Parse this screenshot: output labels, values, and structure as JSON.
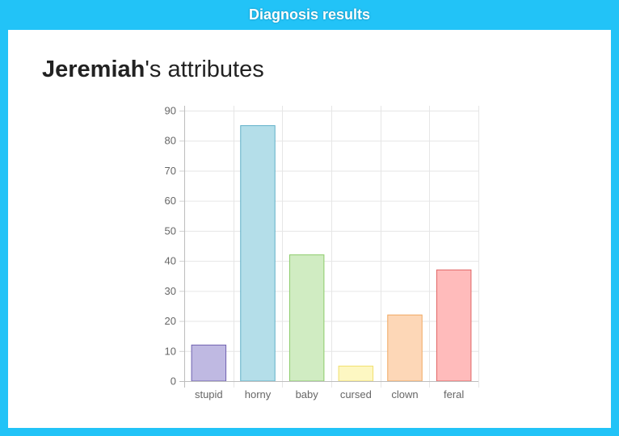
{
  "header": {
    "title": "Diagnosis results"
  },
  "heading": {
    "name": "Jeremiah",
    "suffix": "'s attributes"
  },
  "chart_data": {
    "type": "bar",
    "categories": [
      "stupid",
      "horny",
      "baby",
      "cursed",
      "clown",
      "feral"
    ],
    "values": [
      12,
      85,
      42,
      5,
      22,
      37
    ],
    "ylim": [
      0,
      90
    ],
    "yticks": [
      0,
      10,
      20,
      30,
      40,
      50,
      60,
      70,
      80,
      90
    ],
    "grid": true,
    "legend": "none",
    "colors": {
      "fill": [
        "#bfb9e2",
        "#b4dee9",
        "#d0ecc2",
        "#fdf7c2",
        "#fdd7b7",
        "#ffbbbb"
      ],
      "stroke": [
        "#6e60b0",
        "#5fb0c8",
        "#8ccb6a",
        "#f1df6e",
        "#f0a860",
        "#e06565"
      ]
    }
  }
}
